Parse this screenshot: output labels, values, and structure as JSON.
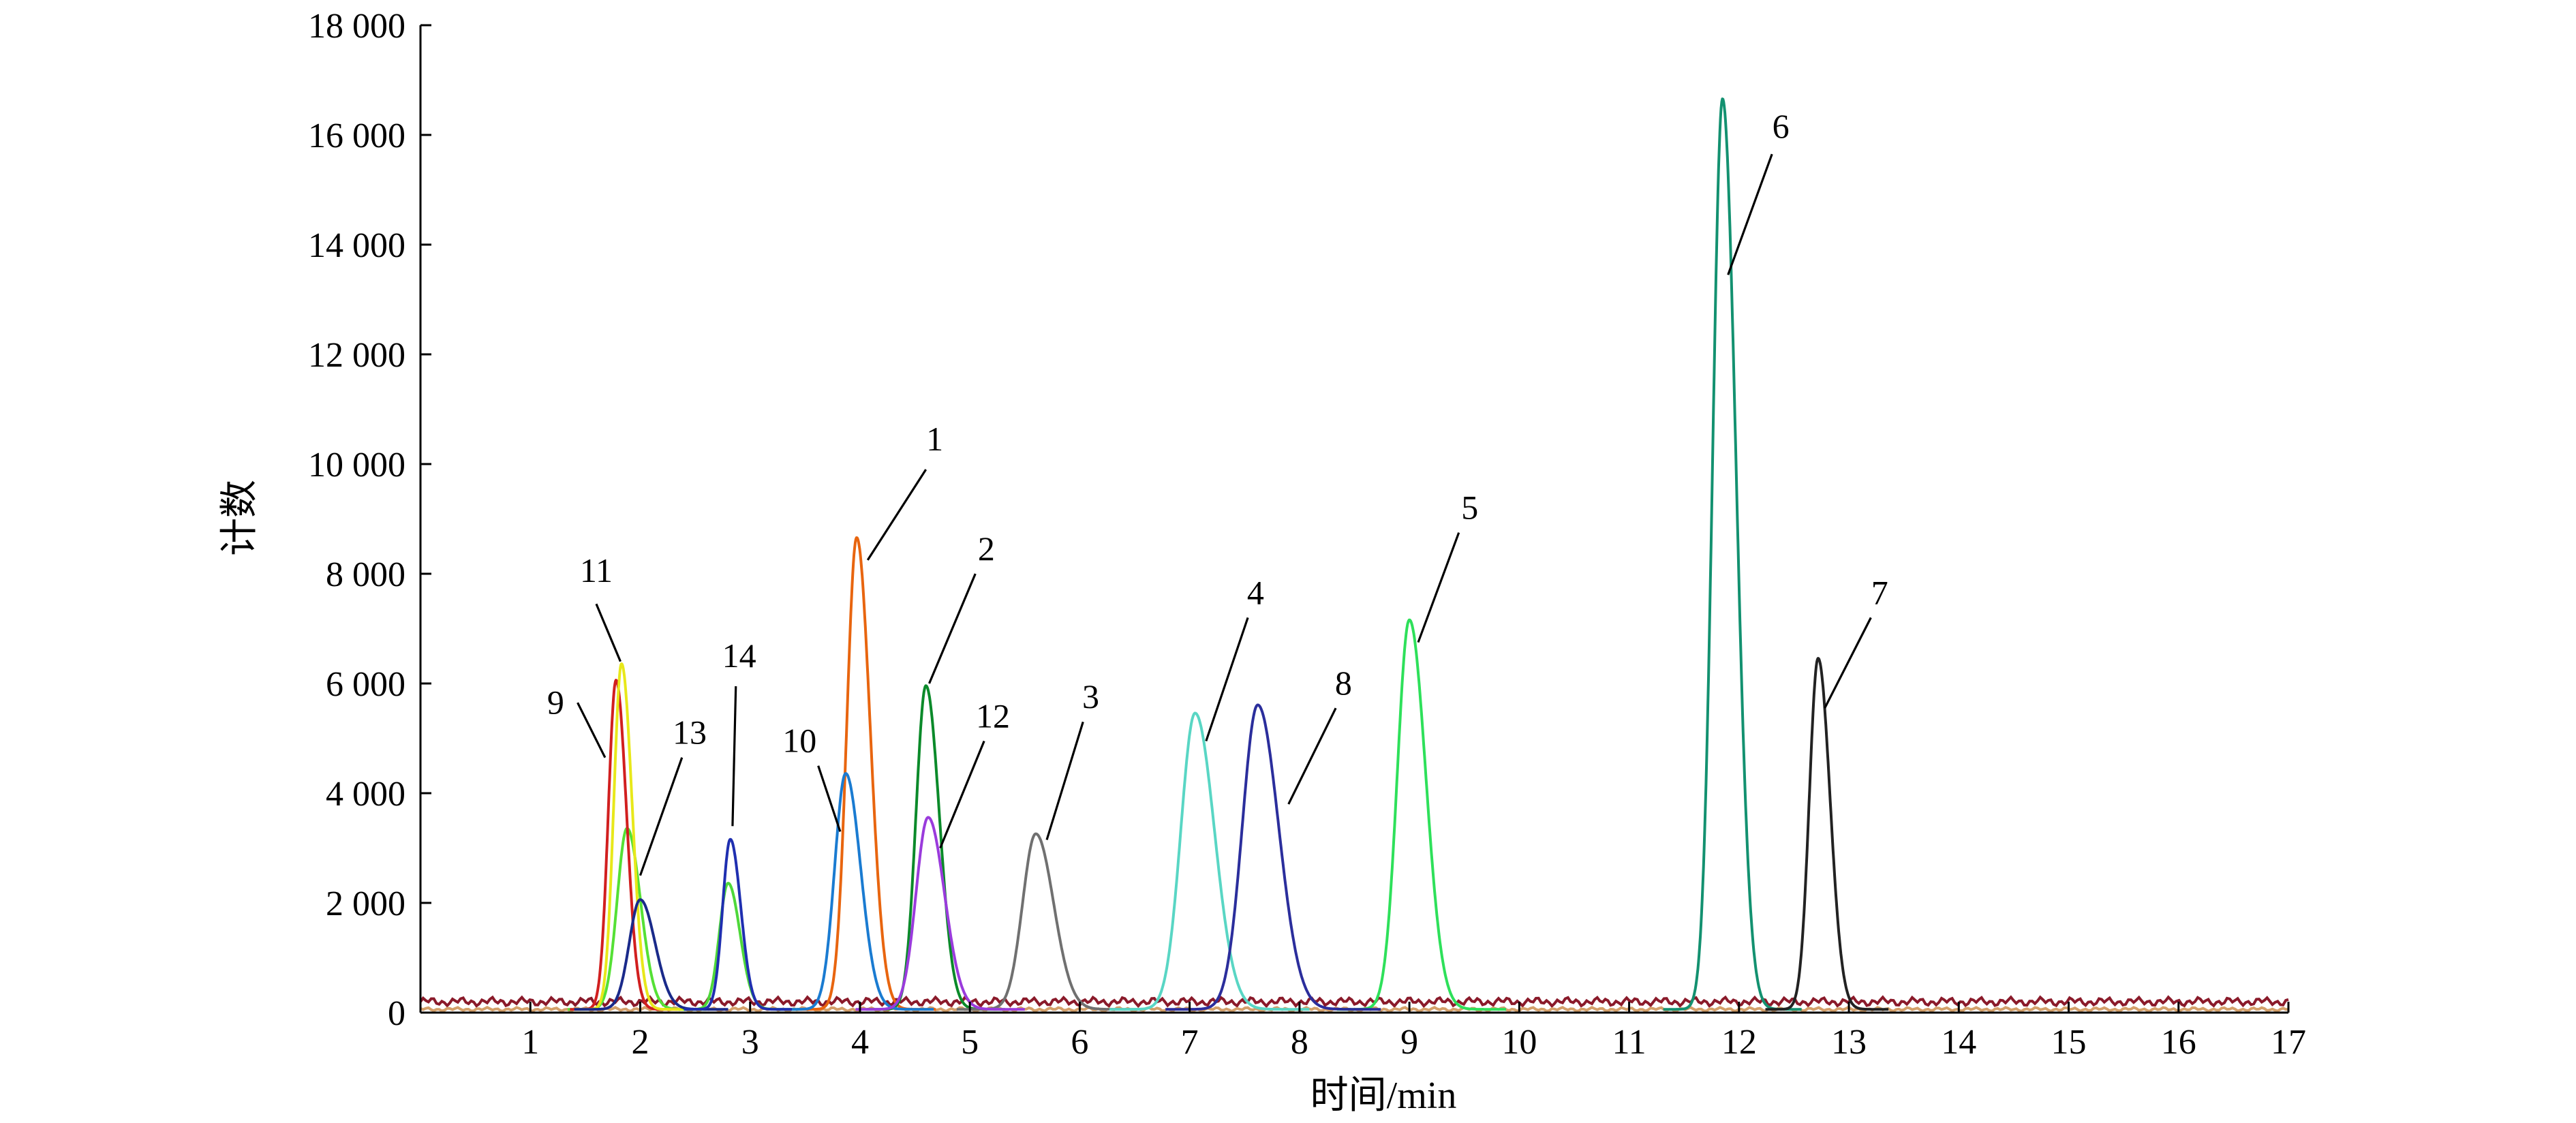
{
  "chart_data": {
    "type": "line",
    "xlabel": "时间/min",
    "ylabel": "计数",
    "xlim": [
      0,
      17
    ],
    "ylim": [
      0,
      18000
    ],
    "x_ticks": [
      "1",
      "2",
      "3",
      "4",
      "5",
      "6",
      "7",
      "8",
      "9",
      "10",
      "11",
      "12",
      "13",
      "14",
      "15",
      "16",
      "17"
    ],
    "y_ticks": [
      "0",
      "2 000",
      "4 000",
      "6 000",
      "8 000",
      "10 000",
      "12 000",
      "14 000",
      "16 000",
      "18 000"
    ],
    "baseline_value": 200,
    "grid": false,
    "series": [
      {
        "label": "1",
        "retention_time": 3.97,
        "peak_height": 8600,
        "width": 0.09,
        "color": "#e8650f"
      },
      {
        "label": "2",
        "retention_time": 4.6,
        "peak_height": 5900,
        "width": 0.09,
        "color": "#0b8a2a"
      },
      {
        "label": "3",
        "retention_time": 5.6,
        "peak_height": 3200,
        "width": 0.12,
        "color": "#707070"
      },
      {
        "label": "4",
        "retention_time": 7.05,
        "peak_height": 5400,
        "width": 0.13,
        "color": "#59d6c4"
      },
      {
        "label": "5",
        "retention_time": 9.0,
        "peak_height": 7100,
        "width": 0.11,
        "color": "#2ee05a"
      },
      {
        "label": "6",
        "retention_time": 11.85,
        "peak_height": 16600,
        "width": 0.09,
        "color": "#139170"
      },
      {
        "label": "7",
        "retention_time": 12.72,
        "peak_height": 6400,
        "width": 0.08,
        "color": "#222222"
      },
      {
        "label": "8",
        "retention_time": 7.62,
        "peak_height": 5550,
        "width": 0.14,
        "color": "#2b2e9c"
      },
      {
        "label": "9",
        "retention_time": 1.78,
        "peak_height": 6000,
        "width": 0.07,
        "color": "#d11f1f"
      },
      {
        "label": "10",
        "retention_time": 3.87,
        "peak_height": 4300,
        "width": 0.1,
        "color": "#1a7bd1"
      },
      {
        "label": "11",
        "retention_time": 1.83,
        "peak_height": 6300,
        "width": 0.07,
        "color": "#e8e81a"
      },
      {
        "label": "12",
        "retention_time": 4.62,
        "peak_height": 3500,
        "width": 0.11,
        "color": "#9a3bdc"
      },
      {
        "label": "13",
        "retention_time": 2.0,
        "peak_height": 2000,
        "width": 0.1,
        "color": "#1a2a8a"
      },
      {
        "label": "14",
        "retention_time": 2.82,
        "peak_height": 3100,
        "width": 0.07,
        "color": "#1f2fb0"
      }
    ],
    "extra_traces": [
      {
        "retention_time": 1.88,
        "peak_height": 3300,
        "width": 0.09,
        "color": "#55e035"
      },
      {
        "retention_time": 2.8,
        "peak_height": 2300,
        "width": 0.08,
        "color": "#4ed83a"
      }
    ],
    "peak_labels": [
      {
        "label": "1",
        "text_at": [
          4.68,
          10250
        ],
        "leader_from": [
          4.6,
          9900
        ],
        "leader_to": [
          4.07,
          8250
        ]
      },
      {
        "label": "2",
        "text_at": [
          5.15,
          8250
        ],
        "leader_from": [
          5.05,
          8000
        ],
        "leader_to": [
          4.63,
          6000
        ]
      },
      {
        "label": "3",
        "text_at": [
          6.1,
          5550
        ],
        "leader_from": [
          6.03,
          5300
        ],
        "leader_to": [
          5.7,
          3150
        ]
      },
      {
        "label": "4",
        "text_at": [
          7.6,
          7450
        ],
        "leader_from": [
          7.53,
          7200
        ],
        "leader_to": [
          7.15,
          4950
        ]
      },
      {
        "label": "5",
        "text_at": [
          9.55,
          9000
        ],
        "leader_from": [
          9.45,
          8750
        ],
        "leader_to": [
          9.08,
          6750
        ]
      },
      {
        "label": "6",
        "text_at": [
          12.38,
          15950
        ],
        "leader_from": [
          12.3,
          15650
        ],
        "leader_to": [
          11.9,
          13450
        ]
      },
      {
        "label": "7",
        "text_at": [
          13.28,
          7450
        ],
        "leader_from": [
          13.2,
          7200
        ],
        "leader_to": [
          12.78,
          5550
        ]
      },
      {
        "label": "8",
        "text_at": [
          8.4,
          5800
        ],
        "leader_from": [
          8.33,
          5550
        ],
        "leader_to": [
          7.9,
          3800
        ]
      },
      {
        "label": "9",
        "text_at": [
          1.23,
          5450
        ],
        "leader_from": [
          1.43,
          5650
        ],
        "leader_to": [
          1.68,
          4650
        ]
      },
      {
        "label": "10",
        "text_at": [
          3.45,
          4750
        ],
        "leader_from": [
          3.62,
          4500
        ],
        "leader_to": [
          3.82,
          3300
        ]
      },
      {
        "label": "11",
        "text_at": [
          1.6,
          7850
        ],
        "leader_from": [
          1.6,
          7450
        ],
        "leader_to": [
          1.82,
          6400
        ]
      },
      {
        "label": "12",
        "text_at": [
          5.21,
          5200
        ],
        "leader_from": [
          5.13,
          4950
        ],
        "leader_to": [
          4.73,
          3000
        ]
      },
      {
        "label": "13",
        "text_at": [
          2.45,
          4900
        ],
        "leader_from": [
          2.38,
          4650
        ],
        "leader_to": [
          2.0,
          2500
        ]
      },
      {
        "label": "14",
        "text_at": [
          2.9,
          6300
        ],
        "leader_from": [
          2.87,
          5950
        ],
        "leader_to": [
          2.84,
          3400
        ]
      }
    ]
  }
}
